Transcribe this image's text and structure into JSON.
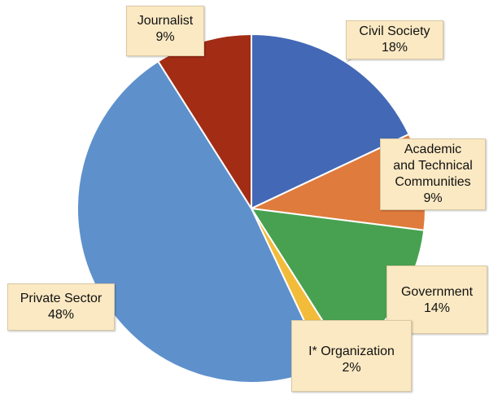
{
  "chart_data": {
    "type": "pie",
    "title": "",
    "start_angle_deg": 0,
    "direction": "clockwise",
    "slices": [
      {
        "category": "Civil Society",
        "value": 18,
        "value_label": "18%",
        "color": "#4368b5"
      },
      {
        "category_lines": [
          "Academic",
          "and Technical",
          "Communities"
        ],
        "value": 9,
        "value_label": "9%",
        "color": "#df7b3c"
      },
      {
        "category": "Government",
        "value": 14,
        "value_label": "14%",
        "color": "#48a150"
      },
      {
        "category": "I* Organization",
        "value": 2,
        "value_label": "2%",
        "color": "#f3bb3a"
      },
      {
        "category": "Private Sector",
        "value": 48,
        "value_label": "48%",
        "color": "#5e90cc"
      },
      {
        "category": "Journalist",
        "value": 9,
        "value_label": "9%",
        "color": "#a32c15"
      }
    ]
  }
}
